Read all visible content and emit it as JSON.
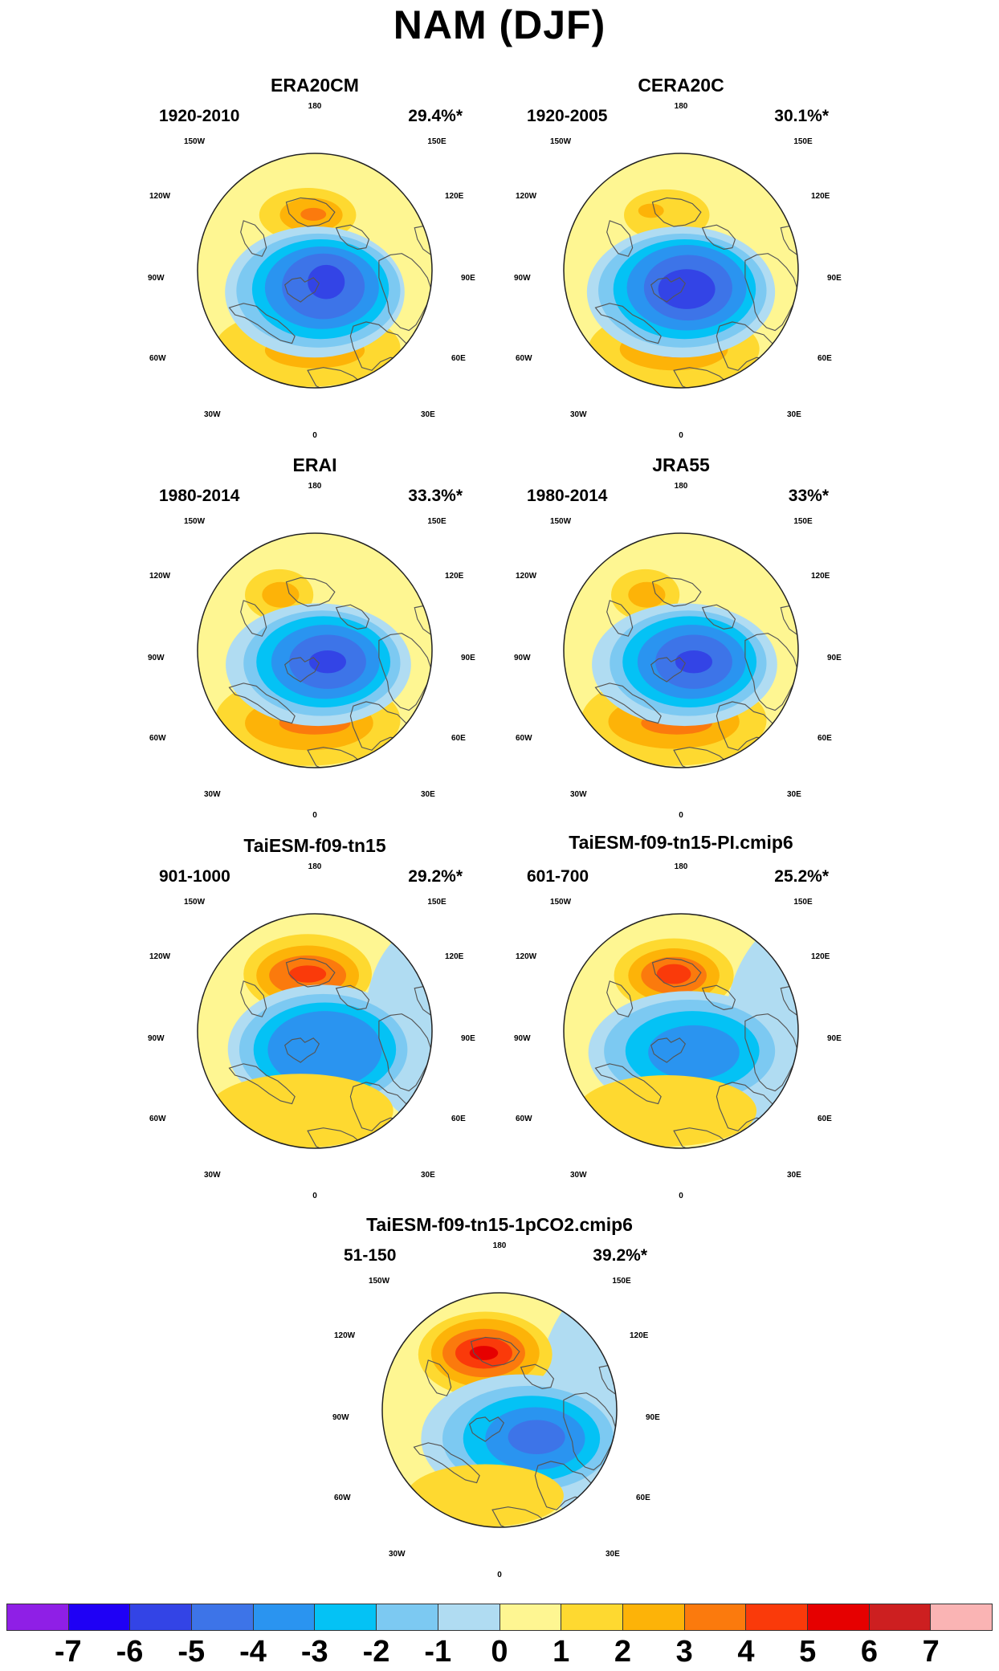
{
  "title": "NAM (DJF)",
  "panels": [
    {
      "name": "ERA20CM",
      "years": "1920-2010",
      "pct": "29.4%*"
    },
    {
      "name": "CERA20C",
      "years": "1920-2005",
      "pct": "30.1%*"
    },
    {
      "name": "ERAI",
      "years": "1980-2014",
      "pct": "33.3%*"
    },
    {
      "name": "JRA55",
      "years": "1980-2014",
      "pct": "33%*"
    },
    {
      "name": "TaiESM-f09-tn15",
      "years": "901-1000",
      "pct": "29.2%*"
    },
    {
      "name": "TaiESM-f09-tn15-PI.cmip6",
      "years": "601-700",
      "pct": "25.2%*"
    },
    {
      "name": "TaiESM-f09-tn15-1pCO2.cmip6",
      "years": "51-150",
      "pct": "39.2%*"
    }
  ],
  "lon_labels": {
    "top": "180",
    "bottom": "0",
    "l150": "150W",
    "r150": "150E",
    "l120": "120W",
    "r120": "120E",
    "l90": "90W",
    "r90": "90E",
    "l60": "60W",
    "r60": "60E",
    "l30": "30W",
    "r30": "30E"
  },
  "colorbar": {
    "colors": [
      "#8f1fe6",
      "#1f00f5",
      "#3344e6",
      "#3d74e8",
      "#2a94f0",
      "#04c2f5",
      "#7cc9f2",
      "#b0dcf2",
      "#fef692",
      "#fed930",
      "#fdb308",
      "#fb7a0d",
      "#fa3a0a",
      "#e60000",
      "#cd1f20",
      "#fab4b4"
    ],
    "labels": [
      "-7",
      "-6",
      "-5",
      "-4",
      "-3",
      "-2",
      "-1",
      "0",
      "1",
      "2",
      "3",
      "4",
      "5",
      "6",
      "7"
    ]
  }
}
